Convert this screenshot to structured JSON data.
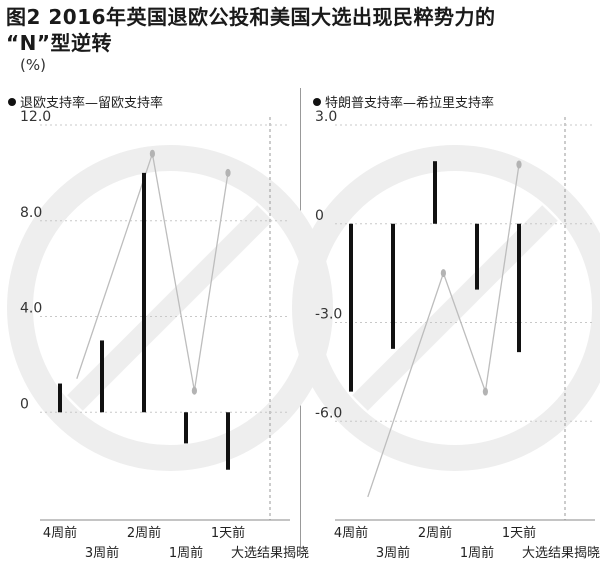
{
  "figure": {
    "title_line1": "图2  2016年英国退欧公投和美国大选出现民粹势力的",
    "title_line2": "“N”型逆转",
    "unit": "(%)",
    "colors": {
      "bar": "#111111",
      "connector": "#bdbdbd",
      "dot": "#b3b3b3",
      "grid": "#c8c8c8",
      "watermark": "#eeeeee"
    }
  },
  "chart_data": [
    {
      "type": "bar",
      "legend": "退欧支持率—留欧支持率",
      "x": [
        "4周前",
        "3周前",
        "2周前",
        "1周前",
        "1天前",
        "大选结果揭晓"
      ],
      "values": [
        1.2,
        3.0,
        10.0,
        -1.3,
        -2.4,
        null
      ],
      "yticks": [
        12.0,
        8.0,
        4.0,
        0
      ],
      "ytick_labels": [
        "12.0",
        "8.0",
        "4.0",
        "0"
      ],
      "ylim": [
        -4.5,
        12.0
      ],
      "connector": {
        "x": [
          0.4,
          2.2,
          3.2,
          4.0
        ],
        "y": [
          1.4,
          10.8,
          0.9,
          10.0
        ]
      },
      "grid": "horizontal dotted"
    },
    {
      "type": "bar",
      "legend": "特朗普支持率—希拉里支持率",
      "x": [
        "4周前",
        "3周前",
        "2周前",
        "1周前",
        "1天前",
        "大选结果揭晓"
      ],
      "values": [
        -5.1,
        -3.8,
        1.9,
        -2.0,
        -3.9,
        null
      ],
      "yticks": [
        3.0,
        0,
        -3.0,
        -6.0
      ],
      "ytick_labels": [
        "3.0",
        "0",
        "-3.0",
        "-6.0"
      ],
      "ylim": [
        -9.0,
        3.0
      ],
      "connector": {
        "x": [
          0.4,
          2.2,
          3.2,
          4.0
        ],
        "y": [
          -8.3,
          -1.5,
          -5.1,
          1.8
        ]
      },
      "grid": "horizontal dotted"
    }
  ]
}
